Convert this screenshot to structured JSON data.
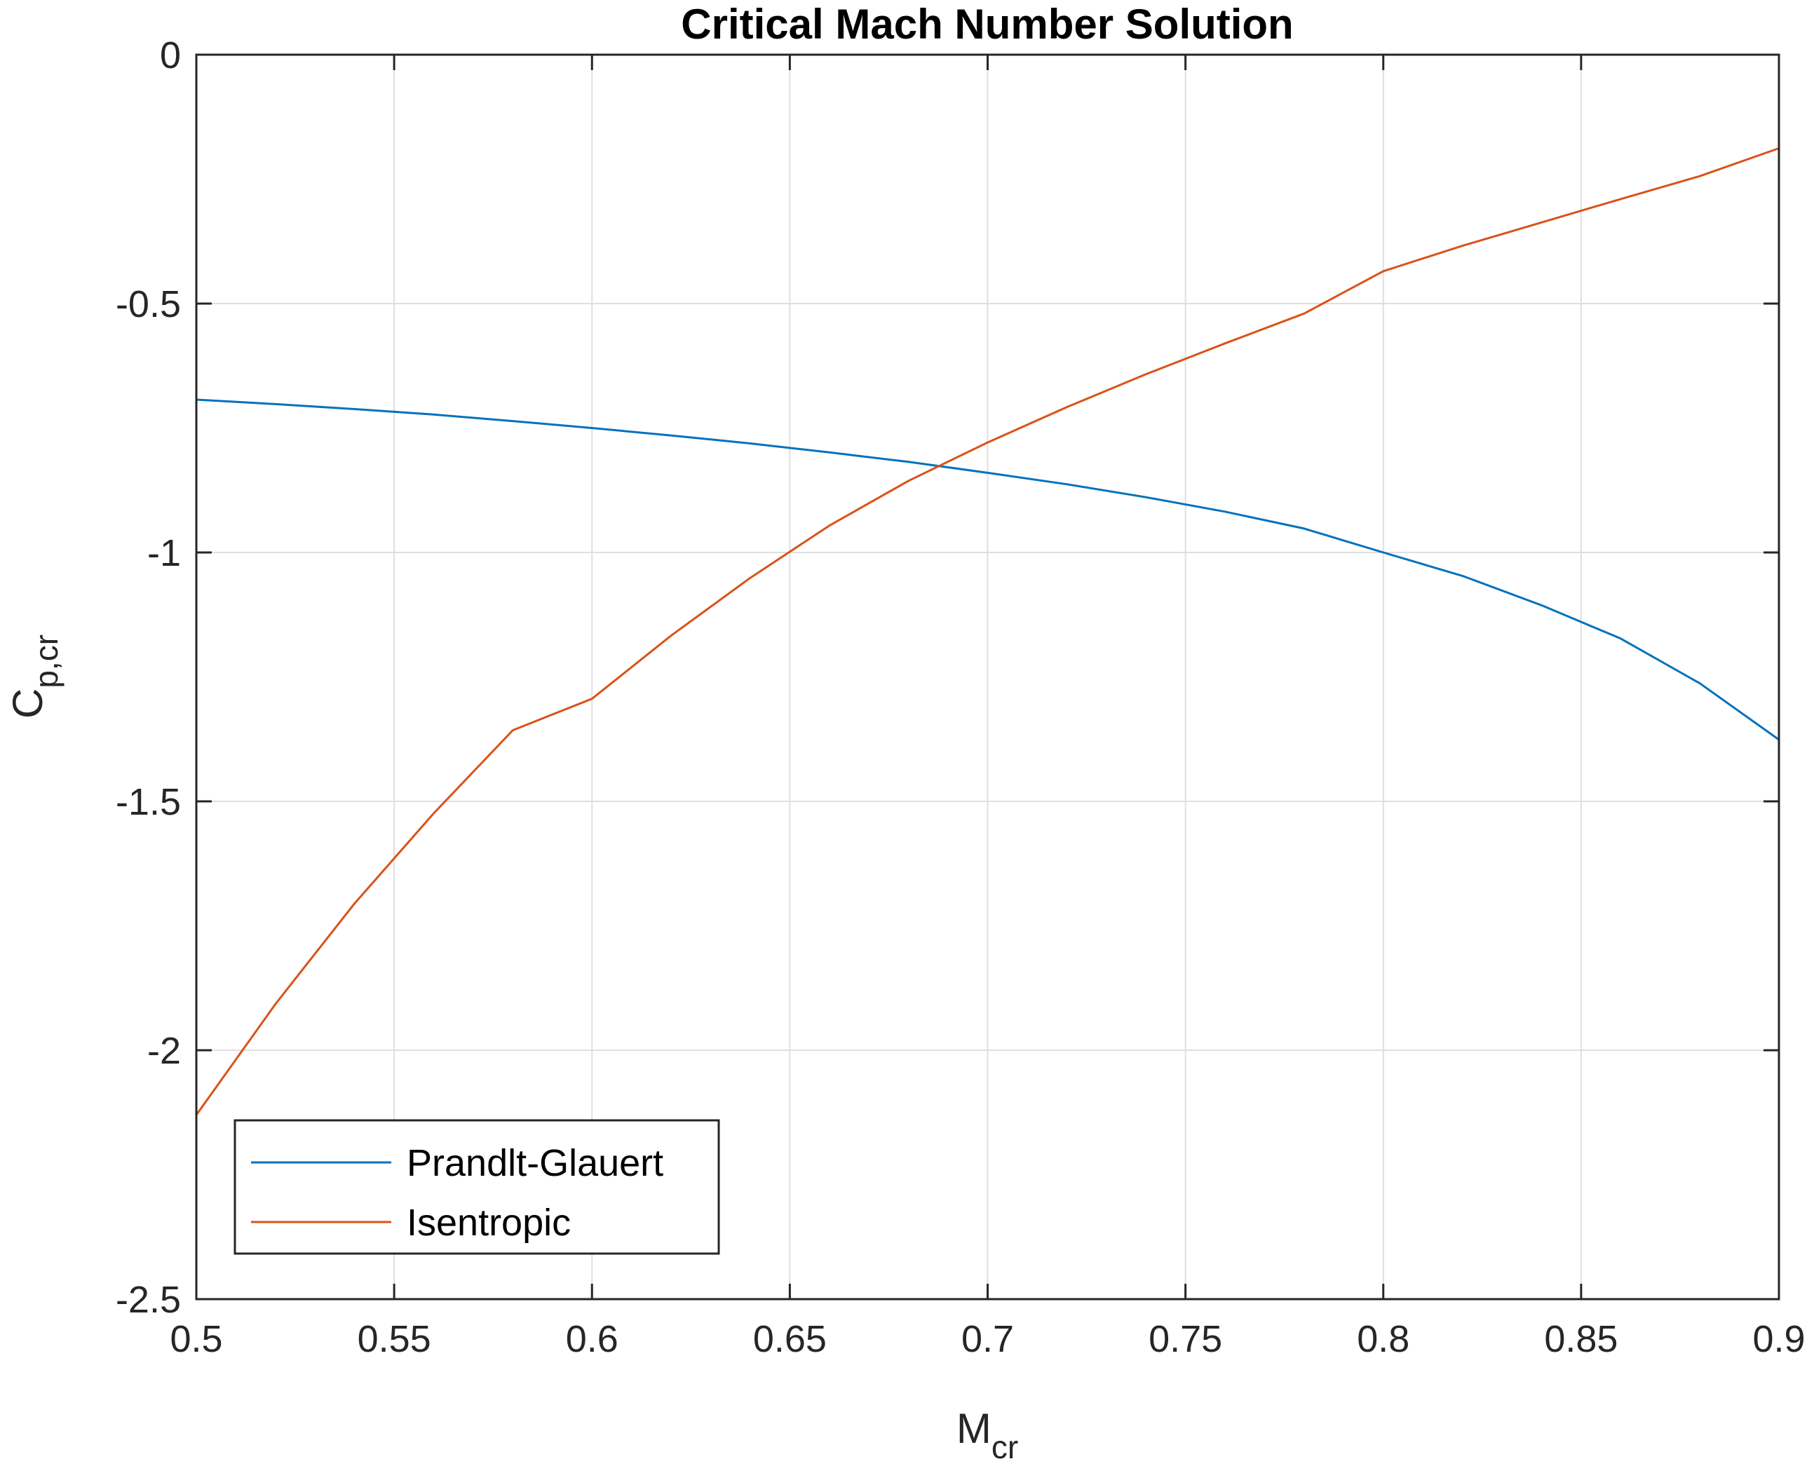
{
  "chart_data": {
    "type": "line",
    "title": "Critical Mach Number Solution",
    "xlabel": {
      "main": "M",
      "sub": "cr"
    },
    "ylabel": {
      "main": "C",
      "sub": "p,cr"
    },
    "xlim": [
      0.5,
      0.9
    ],
    "ylim": [
      -2.5,
      0
    ],
    "xticks": [
      0.5,
      0.55,
      0.6,
      0.65,
      0.7,
      0.75,
      0.8,
      0.85,
      0.9
    ],
    "xtick_labels": [
      "0.5",
      "0.55",
      "0.6",
      "0.65",
      "0.7",
      "0.75",
      "0.8",
      "0.85",
      "0.9"
    ],
    "yticks": [
      0,
      -0.5,
      -1,
      -1.5,
      -2,
      -2.5
    ],
    "ytick_labels": [
      "0",
      "-0.5",
      "-1",
      "-1.5",
      "-2",
      "-2.5"
    ],
    "grid": true,
    "legend_position": "bottom-left",
    "series": [
      {
        "name": "Prandlt-Glauert",
        "color": "#0072BD",
        "x": [
          0.5,
          0.52,
          0.54,
          0.56,
          0.58,
          0.6,
          0.62,
          0.64,
          0.66,
          0.68,
          0.7,
          0.72,
          0.74,
          0.76,
          0.78,
          0.8,
          0.82,
          0.84,
          0.86,
          0.88,
          0.9
        ],
        "y": [
          -0.693,
          -0.702,
          -0.712,
          -0.723,
          -0.736,
          -0.75,
          -0.765,
          -0.781,
          -0.799,
          -0.818,
          -0.84,
          -0.863,
          -0.889,
          -0.918,
          -0.952,
          -1.0,
          -1.047,
          -1.106,
          -1.173,
          -1.263,
          -1.376
        ]
      },
      {
        "name": "Isentropic",
        "color": "#D95319",
        "x": [
          0.5,
          0.52,
          0.54,
          0.56,
          0.58,
          0.6,
          0.62,
          0.64,
          0.66,
          0.68,
          0.7,
          0.72,
          0.74,
          0.76,
          0.78,
          0.8,
          0.82,
          0.84,
          0.86,
          0.88,
          0.9
        ],
        "y": [
          -2.13,
          -1.907,
          -1.705,
          -1.524,
          -1.357,
          -1.294,
          -1.167,
          -1.051,
          -0.946,
          -0.856,
          -0.779,
          -0.708,
          -0.642,
          -0.58,
          -0.52,
          -0.435,
          -0.384,
          -0.337,
          -0.29,
          -0.244,
          -0.188
        ]
      }
    ]
  }
}
